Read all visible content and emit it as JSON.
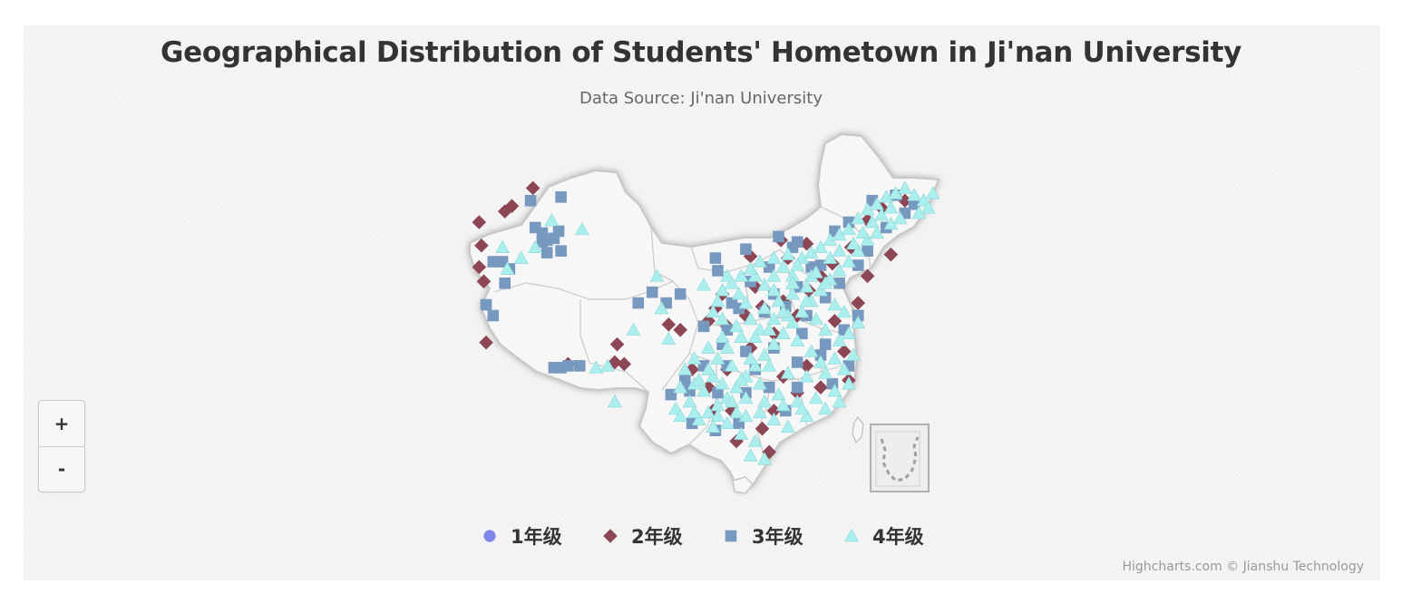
{
  "chart_data": {
    "type": "scatter",
    "title": "Geographical Distribution of Students' Hometown in Ji'nan University",
    "subtitle": "Data Source: Ji'nan University",
    "basemap": "China provinces with South China Sea inset",
    "legend_position": "bottom-center",
    "series": [
      {
        "name": "1年级",
        "marker": "circle",
        "color": "#8085e9",
        "points": []
      },
      {
        "name": "2年级",
        "marker": "diamond",
        "color": "#8d4654",
        "points": [
          [
            -0.96,
            0.5
          ],
          [
            -0.85,
            0.56
          ],
          [
            -0.82,
            0.59
          ],
          [
            -0.73,
            0.69
          ],
          [
            -0.95,
            0.37
          ],
          [
            -0.96,
            0.25
          ],
          [
            -0.94,
            0.17
          ],
          [
            -0.93,
            -0.17
          ],
          [
            -0.58,
            -0.29
          ],
          [
            -0.05,
            -0.32
          ],
          [
            -0.15,
            -0.07
          ],
          [
            0.02,
            -0.05
          ],
          [
            0.05,
            0.02
          ],
          [
            0.1,
            -0.08
          ],
          [
            0.18,
            -0.02
          ],
          [
            0.25,
            0.03
          ],
          [
            0.3,
            -0.12
          ],
          [
            0.34,
            0.06
          ],
          [
            0.4,
            -0.02
          ],
          [
            0.45,
            0.12
          ],
          [
            0.5,
            0.2
          ],
          [
            0.55,
            0.27
          ],
          [
            0.63,
            0.36
          ],
          [
            0.7,
            0.51
          ],
          [
            0.76,
            0.58
          ],
          [
            0.86,
            0.62
          ],
          [
            0.2,
            -0.2
          ],
          [
            0.1,
            -0.32
          ],
          [
            0.02,
            -0.42
          ],
          [
            0.04,
            -0.55
          ],
          [
            0.12,
            -0.55
          ],
          [
            0.25,
            -0.65
          ],
          [
            0.3,
            -0.55
          ],
          [
            0.4,
            -0.45
          ],
          [
            0.5,
            -0.42
          ],
          [
            0.62,
            -0.38
          ],
          [
            0.34,
            -0.36
          ],
          [
            0.44,
            -0.3
          ],
          [
            0.6,
            -0.22
          ],
          [
            0.56,
            -0.05
          ],
          [
            0.66,
            0.05
          ],
          [
            0.7,
            0.2
          ],
          [
            0.8,
            0.32
          ],
          [
            0.28,
            -0.78
          ],
          [
            0.14,
            -0.72
          ],
          [
            0.44,
            0.38
          ],
          [
            0.36,
            0.3
          ],
          [
            0.33,
            0.4
          ],
          [
            -0.37,
            -0.18
          ],
          [
            -0.38,
            -0.28
          ],
          [
            -0.34,
            -0.29
          ],
          [
            -0.1,
            -0.1
          ],
          [
            0.2,
            0.31
          ],
          [
            0.08,
            0.1
          ],
          [
            0.22,
            0.14
          ]
        ]
      },
      {
        "name": "3年级",
        "marker": "square",
        "color": "#7798bf",
        "points": [
          [
            -0.74,
            0.62
          ],
          [
            -0.72,
            0.47
          ],
          [
            -0.69,
            0.44
          ],
          [
            -0.62,
            0.45
          ],
          [
            -0.64,
            0.41
          ],
          [
            -0.67,
            0.4
          ],
          [
            -0.61,
            0.64
          ],
          [
            -0.69,
            0.39
          ],
          [
            -0.67,
            0.33
          ],
          [
            -0.61,
            0.34
          ],
          [
            -0.83,
            0.24
          ],
          [
            -0.86,
            0.28
          ],
          [
            -0.9,
            0.28
          ],
          [
            -0.85,
            0.16
          ],
          [
            -0.93,
            0.04
          ],
          [
            -0.9,
            -0.02
          ],
          [
            -0.64,
            -0.31
          ],
          [
            -0.61,
            -0.31
          ],
          [
            -0.58,
            -0.3
          ],
          [
            -0.53,
            -0.3
          ],
          [
            -0.16,
            0.05
          ],
          [
            -0.28,
            0.05
          ],
          [
            -0.22,
            0.11
          ],
          [
            -0.1,
            0.1
          ],
          [
            0.05,
            0.3
          ],
          [
            0.06,
            0.23
          ],
          [
            0.18,
            0.35
          ],
          [
            0.32,
            0.42
          ],
          [
            0.4,
            0.39
          ],
          [
            0.56,
            0.45
          ],
          [
            0.62,
            0.5
          ],
          [
            0.72,
            0.62
          ],
          [
            0.82,
            0.65
          ],
          [
            0.9,
            0.6
          ],
          [
            0.86,
            0.55
          ],
          [
            0.78,
            0.47
          ],
          [
            0.7,
            0.34
          ],
          [
            0.66,
            0.26
          ],
          [
            0.46,
            0.25
          ],
          [
            0.4,
            0.14
          ],
          [
            0.3,
            0.1
          ],
          [
            0.15,
            0.02
          ],
          [
            0.0,
            -0.08
          ],
          [
            -0.14,
            -0.46
          ],
          [
            -0.06,
            -0.44
          ],
          [
            0.06,
            -0.45
          ],
          [
            0.18,
            -0.45
          ],
          [
            0.28,
            -0.42
          ],
          [
            0.4,
            -0.42
          ],
          [
            0.55,
            -0.4
          ],
          [
            0.62,
            -0.3
          ],
          [
            0.52,
            -0.18
          ],
          [
            0.42,
            -0.12
          ],
          [
            0.3,
            -0.2
          ],
          [
            0.18,
            -0.22
          ],
          [
            0.08,
            -0.18
          ],
          [
            0.0,
            -0.3
          ],
          [
            -0.08,
            -0.38
          ],
          [
            0.1,
            -0.3
          ],
          [
            0.22,
            -0.32
          ],
          [
            0.4,
            -0.28
          ],
          [
            0.5,
            -0.24
          ],
          [
            0.44,
            -0.02
          ],
          [
            0.35,
            0.03
          ],
          [
            0.26,
            0.0
          ],
          [
            0.52,
            0.08
          ],
          [
            0.58,
            0.16
          ],
          [
            0.5,
            0.26
          ],
          [
            0.38,
            0.36
          ],
          [
            0.28,
            0.25
          ],
          [
            0.2,
            0.17
          ],
          [
            0.12,
            0.05
          ],
          [
            0.1,
            -0.1
          ],
          [
            0.6,
            -0.1
          ],
          [
            0.66,
            -0.02
          ],
          [
            0.35,
            -0.55
          ],
          [
            0.15,
            -0.62
          ],
          [
            0.05,
            -0.66
          ],
          [
            -0.05,
            -0.62
          ]
        ]
      },
      {
        "name": "4年级",
        "marker": "triangle",
        "color": "#aaeeee",
        "points": [
          [
            -0.52,
            0.46
          ],
          [
            -0.65,
            0.51
          ],
          [
            -0.86,
            0.36
          ],
          [
            -0.84,
            0.24
          ],
          [
            -0.72,
            0.36
          ],
          [
            -0.78,
            0.3
          ],
          [
            -0.46,
            -0.31
          ],
          [
            -0.41,
            -0.3
          ],
          [
            -0.2,
            0.2
          ],
          [
            -0.18,
            0.02
          ],
          [
            -0.15,
            -0.15
          ],
          [
            -0.3,
            -0.1
          ],
          [
            -0.38,
            -0.5
          ],
          [
            -0.12,
            -0.54
          ],
          [
            0.0,
            0.15
          ],
          [
            0.08,
            0.12
          ],
          [
            0.1,
            0.2
          ],
          [
            0.15,
            0.1
          ],
          [
            0.18,
            0.05
          ],
          [
            0.22,
            0.2
          ],
          [
            0.26,
            0.15
          ],
          [
            0.3,
            0.2
          ],
          [
            0.34,
            0.25
          ],
          [
            0.38,
            0.2
          ],
          [
            0.42,
            0.3
          ],
          [
            0.46,
            0.33
          ],
          [
            0.5,
            0.36
          ],
          [
            0.54,
            0.4
          ],
          [
            0.58,
            0.43
          ],
          [
            0.62,
            0.46
          ],
          [
            0.66,
            0.52
          ],
          [
            0.7,
            0.57
          ],
          [
            0.74,
            0.6
          ],
          [
            0.78,
            0.64
          ],
          [
            0.82,
            0.66
          ],
          [
            0.86,
            0.69
          ],
          [
            0.9,
            0.65
          ],
          [
            0.94,
            0.62
          ],
          [
            0.98,
            0.66
          ],
          [
            0.96,
            0.58
          ],
          [
            0.92,
            0.55
          ],
          [
            0.84,
            0.52
          ],
          [
            0.8,
            0.49
          ],
          [
            0.74,
            0.44
          ],
          [
            0.7,
            0.4
          ],
          [
            0.66,
            0.34
          ],
          [
            0.62,
            0.28
          ],
          [
            0.58,
            0.23
          ],
          [
            0.54,
            0.18
          ],
          [
            0.5,
            0.12
          ],
          [
            0.46,
            0.06
          ],
          [
            0.42,
            0.0
          ],
          [
            0.38,
            -0.06
          ],
          [
            0.34,
            -0.12
          ],
          [
            0.3,
            -0.18
          ],
          [
            0.26,
            -0.24
          ],
          [
            0.22,
            -0.3
          ],
          [
            0.18,
            -0.36
          ],
          [
            0.14,
            -0.42
          ],
          [
            0.1,
            -0.48
          ],
          [
            0.06,
            -0.52
          ],
          [
            0.02,
            -0.56
          ],
          [
            -0.02,
            -0.6
          ],
          [
            -0.06,
            -0.5
          ],
          [
            -0.1,
            -0.42
          ],
          [
            -0.04,
            -0.4
          ],
          [
            0.04,
            -0.36
          ],
          [
            0.12,
            -0.3
          ],
          [
            0.2,
            -0.26
          ],
          [
            0.28,
            -0.3
          ],
          [
            0.36,
            -0.34
          ],
          [
            0.44,
            -0.36
          ],
          [
            0.52,
            -0.34
          ],
          [
            0.6,
            -0.32
          ],
          [
            0.64,
            -0.24
          ],
          [
            0.58,
            -0.16
          ],
          [
            0.52,
            -0.1
          ],
          [
            0.48,
            -0.04
          ],
          [
            0.44,
            0.06
          ],
          [
            0.38,
            0.1
          ],
          [
            0.32,
            0.06
          ],
          [
            0.26,
            0.02
          ],
          [
            0.2,
            -0.04
          ],
          [
            0.14,
            -0.08
          ],
          [
            0.08,
            -0.14
          ],
          [
            0.02,
            -0.2
          ],
          [
            -0.04,
            -0.26
          ],
          [
            -0.08,
            -0.32
          ],
          [
            0.0,
            -0.44
          ],
          [
            0.08,
            -0.4
          ],
          [
            0.16,
            -0.38
          ],
          [
            0.24,
            -0.4
          ],
          [
            0.32,
            -0.46
          ],
          [
            0.4,
            -0.5
          ],
          [
            0.48,
            -0.48
          ],
          [
            0.56,
            -0.44
          ],
          [
            0.62,
            -0.4
          ],
          [
            0.18,
            -0.58
          ],
          [
            0.24,
            -0.56
          ],
          [
            0.3,
            -0.6
          ],
          [
            0.1,
            -0.62
          ],
          [
            0.16,
            -0.68
          ],
          [
            0.22,
            -0.72
          ],
          [
            0.26,
            -0.82
          ],
          [
            0.2,
            -0.8
          ],
          [
            0.36,
            -0.64
          ],
          [
            0.44,
            -0.58
          ],
          [
            0.52,
            -0.54
          ],
          [
            0.58,
            -0.5
          ],
          [
            0.62,
            -0.12
          ],
          [
            0.66,
            -0.06
          ],
          [
            0.6,
            0.0
          ],
          [
            0.56,
            0.04
          ],
          [
            0.52,
            0.16
          ],
          [
            0.46,
            0.2
          ],
          [
            0.4,
            0.26
          ],
          [
            0.36,
            0.32
          ],
          [
            0.3,
            0.3
          ],
          [
            0.24,
            0.28
          ],
          [
            0.2,
            0.24
          ],
          [
            0.16,
            0.2
          ],
          [
            0.12,
            0.16
          ],
          [
            0.06,
            0.06
          ],
          [
            0.04,
            0.0
          ],
          [
            0.08,
            -0.04
          ],
          [
            0.24,
            -0.1
          ],
          [
            0.3,
            -0.04
          ],
          [
            0.36,
            -0.02
          ],
          [
            0.4,
            -0.16
          ],
          [
            0.46,
            -0.22
          ],
          [
            0.5,
            -0.28
          ],
          [
            0.56,
            -0.26
          ],
          [
            0.1,
            -0.2
          ],
          [
            0.06,
            -0.26
          ],
          [
            0.02,
            -0.32
          ],
          [
            -0.02,
            -0.38
          ],
          [
            0.16,
            -0.14
          ],
          [
            0.22,
            -0.14
          ],
          [
            0.28,
            -0.1
          ],
          [
            0.34,
            0.0
          ],
          [
            0.3,
            0.12
          ],
          [
            0.38,
            0.16
          ],
          [
            0.44,
            0.14
          ],
          [
            0.48,
            0.22
          ],
          [
            0.54,
            0.3
          ],
          [
            0.58,
            0.34
          ],
          [
            0.64,
            0.38
          ],
          [
            0.68,
            0.44
          ],
          [
            0.72,
            0.5
          ],
          [
            0.76,
            0.54
          ],
          [
            0.8,
            0.58
          ],
          [
            0.12,
            -0.5
          ],
          [
            0.18,
            -0.48
          ],
          [
            0.26,
            -0.5
          ],
          [
            0.34,
            -0.52
          ],
          [
            0.42,
            -0.54
          ],
          [
            0.06,
            -0.58
          ],
          [
            0.14,
            -0.56
          ],
          [
            0.04,
            -0.64
          ],
          [
            -0.04,
            -0.56
          ],
          [
            -0.1,
            -0.58
          ]
        ]
      }
    ]
  },
  "zoom": {
    "in_label": "+",
    "out_label": "-"
  },
  "credits": "Highcharts.com © Jianshu Technology"
}
